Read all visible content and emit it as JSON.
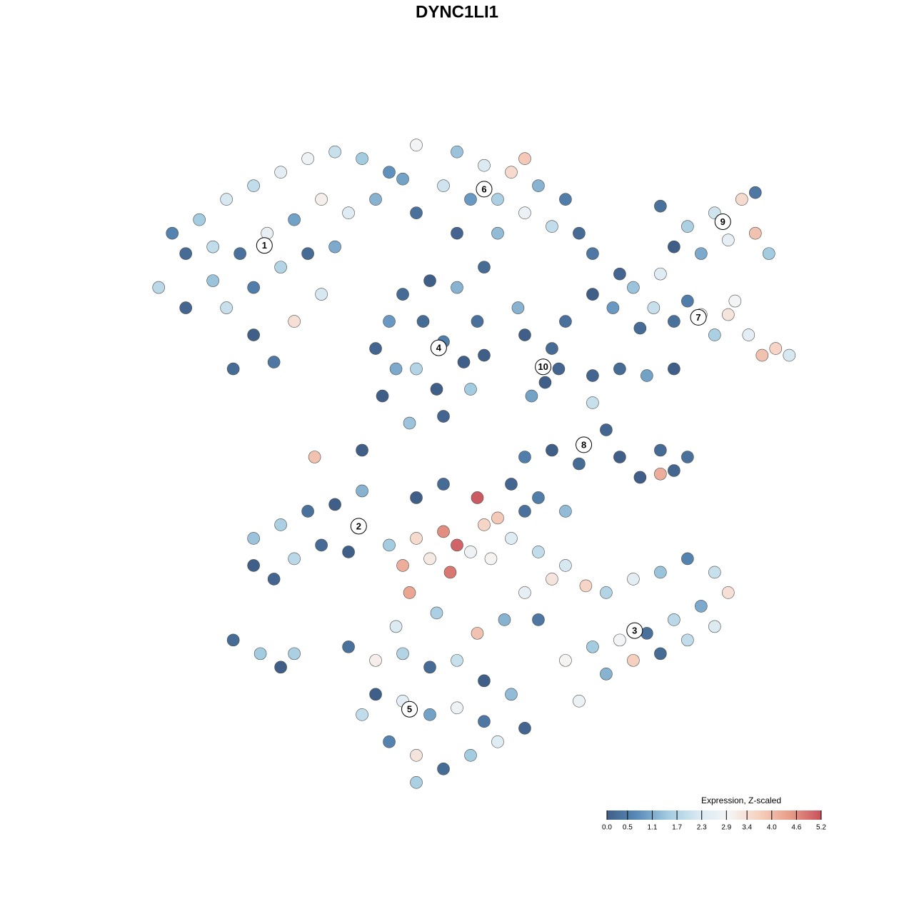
{
  "chart_data": {
    "type": "scatter",
    "title": "DYNC1LI1",
    "xlim": [
      -67.4,
      67.4
    ],
    "ylim": [
      -67.4,
      67.4
    ],
    "x": [
      -40,
      -44,
      -38,
      -34,
      -30,
      -26,
      -22,
      -18,
      -14,
      -10,
      -12,
      -16,
      -20,
      -24,
      -28,
      -32,
      -36,
      -40,
      -34,
      -30,
      -26,
      -22,
      -18,
      -30,
      -27,
      -33,
      -24,
      -36,
      -42,
      -20,
      -6,
      0,
      4,
      8,
      12,
      16,
      18,
      14,
      10,
      6,
      2,
      -2,
      -6,
      0,
      6,
      10,
      -8,
      4,
      -12,
      -10,
      -8,
      -4,
      0,
      3,
      4,
      2,
      -2,
      -7,
      -11,
      -6,
      -2,
      1,
      -5,
      -9,
      -3,
      10,
      14,
      13,
      11,
      15,
      16,
      9,
      20,
      24,
      23,
      20,
      30,
      34,
      38,
      42,
      44,
      40,
      36,
      32,
      46,
      44,
      26,
      29,
      32,
      36,
      40,
      43,
      47,
      49,
      45,
      38,
      34,
      30,
      27,
      41,
      20,
      24,
      28,
      32,
      20,
      22,
      24,
      30,
      32,
      27,
      30,
      34,
      18,
      14,
      10,
      -30,
      -26,
      -22,
      -18,
      -14,
      -20,
      -27,
      -24,
      -16,
      -30,
      -33,
      -29,
      -26,
      -24,
      -6,
      -2,
      0,
      -4,
      -8,
      2,
      4,
      -1,
      -7,
      5,
      8,
      3,
      6,
      -10,
      10,
      12,
      10,
      14,
      7,
      3,
      -3,
      -9,
      -2,
      -6,
      8,
      12,
      16,
      16,
      19,
      22,
      26,
      30,
      34,
      38,
      40,
      36,
      32,
      28,
      24,
      20,
      16,
      22,
      26,
      30,
      34,
      38,
      12,
      18,
      -16,
      -12,
      -8,
      -4,
      0,
      4,
      8,
      10,
      6,
      2,
      -2,
      -6,
      -10,
      -14,
      -12,
      -8,
      -4,
      0,
      4,
      -6,
      -21,
      -14
    ],
    "y": [
      30,
      25,
      35,
      38,
      40,
      42,
      44,
      45,
      44,
      42,
      38,
      36,
      38,
      35,
      33,
      30,
      26,
      22,
      22,
      25,
      28,
      30,
      31,
      18,
      14,
      13,
      20,
      31,
      33,
      24,
      46,
      45,
      43,
      42,
      40,
      38,
      33,
      34,
      36,
      38,
      38,
      40,
      36,
      33,
      33,
      44,
      41,
      28,
      16,
      20,
      24,
      26,
      25,
      20,
      15,
      10,
      6,
      5,
      9,
      13,
      17,
      14,
      20,
      13,
      10,
      18,
      16,
      11,
      9,
      13,
      20,
      22,
      30,
      27,
      22,
      24,
      37,
      34,
      36,
      38,
      33,
      32,
      30,
      31,
      30,
      39,
      25,
      22,
      20,
      21,
      21,
      18,
      16,
      15,
      15,
      18,
      23,
      27,
      19,
      23,
      12,
      13,
      12,
      13,
      8,
      4,
      0,
      1,
      -2,
      -3,
      -2.5,
      0,
      -1,
      1,
      0,
      -16,
      -10,
      -8,
      -7,
      -5,
      -13,
      -18,
      -15,
      -14,
      -12,
      -27,
      -29,
      -31,
      -29,
      -12,
      -11,
      -13,
      -15,
      -16,
      -14,
      -10,
      -17,
      -20,
      -15,
      -12,
      -6,
      -9,
      -13,
      -8,
      -14,
      -20,
      -18,
      -24,
      -26,
      -23,
      -25,
      -4,
      -6,
      -4,
      -6,
      -8,
      -16,
      -19,
      -20,
      -18,
      -17,
      -15,
      -17,
      -20,
      -22,
      -24,
      -26,
      -27,
      -28,
      -30,
      -32,
      -30,
      -29,
      -27,
      -25,
      -24,
      -36,
      -28,
      -30,
      -29,
      -31,
      -30,
      -33,
      -35,
      -40,
      -42,
      -44,
      -46,
      -44,
      -42,
      -38,
      -35,
      -36,
      -38,
      -37,
      -39,
      -48,
      0,
      1
    ],
    "values": [
      0.2,
      1.8,
      1.5,
      2.2,
      1.9,
      2.5,
      2.8,
      2.0,
      1.5,
      0.8,
      1.2,
      2.4,
      3.1,
      1.0,
      2.6,
      0.3,
      1.4,
      0.1,
      2.0,
      0.5,
      1.7,
      0.2,
      1.1,
      0.0,
      0.4,
      0.2,
      3.4,
      1.9,
      0.6,
      2.2,
      2.9,
      1.4,
      2.3,
      3.5,
      1.2,
      0.5,
      0.2,
      1.9,
      2.7,
      1.6,
      0.9,
      2.1,
      0.3,
      0.1,
      1.3,
      3.8,
      1.0,
      0.2,
      0.1,
      0.9,
      0.2,
      0.0,
      1.2,
      0.3,
      0.0,
      1.5,
      0.1,
      1.4,
      0.0,
      1.7,
      0.5,
      0.0,
      0.2,
      1.1,
      0.0,
      0.0,
      0.2,
      0.0,
      1.0,
      0.1,
      0.3,
      1.2,
      0.4,
      0.1,
      0.9,
      0.0,
      0.3,
      1.6,
      2.1,
      3.5,
      3.9,
      2.6,
      1.1,
      0.0,
      1.5,
      0.4,
      1.4,
      2.0,
      0.3,
      2.8,
      3.3,
      2.5,
      3.6,
      2.2,
      3.9,
      1.6,
      0.5,
      2.4,
      0.2,
      2.9,
      0.1,
      0.2,
      1.0,
      0.0,
      2.0,
      0.1,
      0.0,
      0.2,
      0.1,
      0.0,
      4.2,
      0.3,
      0.2,
      0.0,
      0.5,
      0.0,
      1.6,
      0.3,
      0.0,
      1.2,
      0.2,
      0.1,
      1.8,
      0.0,
      1.4,
      0.2,
      1.5,
      0.0,
      1.6,
      3.5,
      4.6,
      5.0,
      3.2,
      4.2,
      2.8,
      3.6,
      4.8,
      4.3,
      3.0,
      2.4,
      5.1,
      3.8,
      1.5,
      0.3,
      1.9,
      2.6,
      3.3,
      1.2,
      3.9,
      1.6,
      2.3,
      0.2,
      0.0,
      0.1,
      0.5,
      1.3,
      2.2,
      3.6,
      1.7,
      2.5,
      1.4,
      0.6,
      2.0,
      3.4,
      1.1,
      1.8,
      0.3,
      2.9,
      1.5,
      3.0,
      1.2,
      3.7,
      0.2,
      1.9,
      2.3,
      0.4,
      2.7,
      0.3,
      3.1,
      1.7,
      0.2,
      2.0,
      0.0,
      1.3,
      0.1,
      2.4,
      1.5,
      0.2,
      3.3,
      0.6,
      1.9,
      0.0,
      2.5,
      1.0,
      2.8,
      0.4,
      1.6,
      3.9,
      0.0
    ],
    "annotations": [
      {
        "text": "1",
        "x": -28.4,
        "y": 31.2
      },
      {
        "text": "2",
        "x": -14.5,
        "y": -10.2
      },
      {
        "text": "3",
        "x": 26.2,
        "y": -25.6
      },
      {
        "text": "4",
        "x": -2.7,
        "y": 16.1
      },
      {
        "text": "5",
        "x": -7.0,
        "y": -37.2
      },
      {
        "text": "6",
        "x": 4.0,
        "y": 39.5
      },
      {
        "text": "7",
        "x": 35.6,
        "y": 20.6
      },
      {
        "text": "8",
        "x": 18.7,
        "y": 1.8
      },
      {
        "text": "9",
        "x": 39.2,
        "y": 34.7
      },
      {
        "text": "10",
        "x": 12.7,
        "y": 13.3
      }
    ],
    "colorbar_title": "Expression, Z-scaled",
    "clim": [
      0,
      5.2
    ],
    "colormap": [
      "#3f5f88",
      "#5a8cba",
      "#a3cbe0",
      "#d9e9f2",
      "#f5f5f5",
      "#f6cfbd",
      "#e79b87",
      "#c8505c"
    ],
    "cticks": [
      {
        "value": 0,
        "label": "0.0"
      },
      0.5,
      1.1,
      1.7,
      2.3,
      2.9,
      3.4,
      {
        "value": 4,
        "label": "4.0"
      },
      4.6,
      5.2
    ]
  }
}
